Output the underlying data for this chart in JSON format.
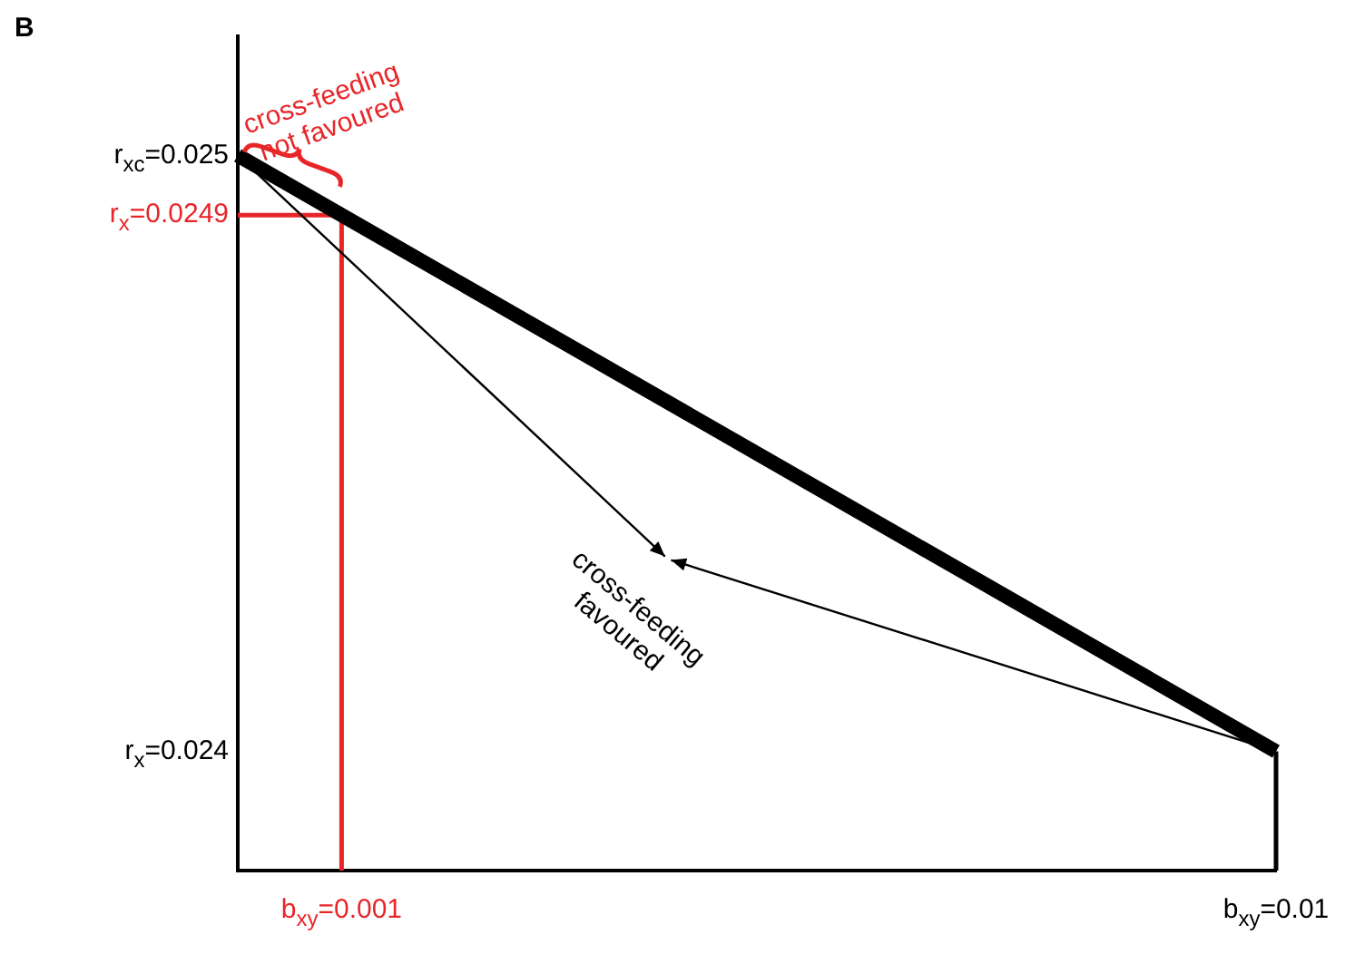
{
  "chart_data": {
    "type": "line",
    "title": "B",
    "marker": "none",
    "grid": false,
    "legend": false,
    "xlim": [
      0,
      0.01
    ],
    "ylim": [
      0.0238,
      0.0252
    ],
    "xticks": [
      {
        "value": 0.001,
        "label": "b$_{xy}$=0.001"
      },
      {
        "value": 0.01,
        "label": "b$_{xy}$=0.01"
      }
    ],
    "yticks": [
      {
        "value": 0.025,
        "label": "r$_{x}$$_{c}$=0.025"
      },
      {
        "value": 0.0249,
        "label": "r$_{x}$=0.0249"
      },
      {
        "value": 0.024,
        "label": "r$_{x}$=0.024"
      }
    ],
    "series": [
      {
        "x": [
          0,
          0.01
        ],
        "values": [
          0.025,
          0.024
        ],
        "color": "#000000"
      },
      {
        "x": [
          0.01,
          0.01
        ],
        "values": [
          0.024,
          0.0238
        ],
        "color": "#000000"
      },
      {
        "x": [
          0,
          0.001,
          0.001
        ],
        "values": [
          0.0249,
          0.0249,
          0.0238
        ],
        "color": "#e8262a"
      }
    ],
    "annotations": [
      "cross-feeding not favoured",
      "cross-feeding favoured"
    ]
  }
}
